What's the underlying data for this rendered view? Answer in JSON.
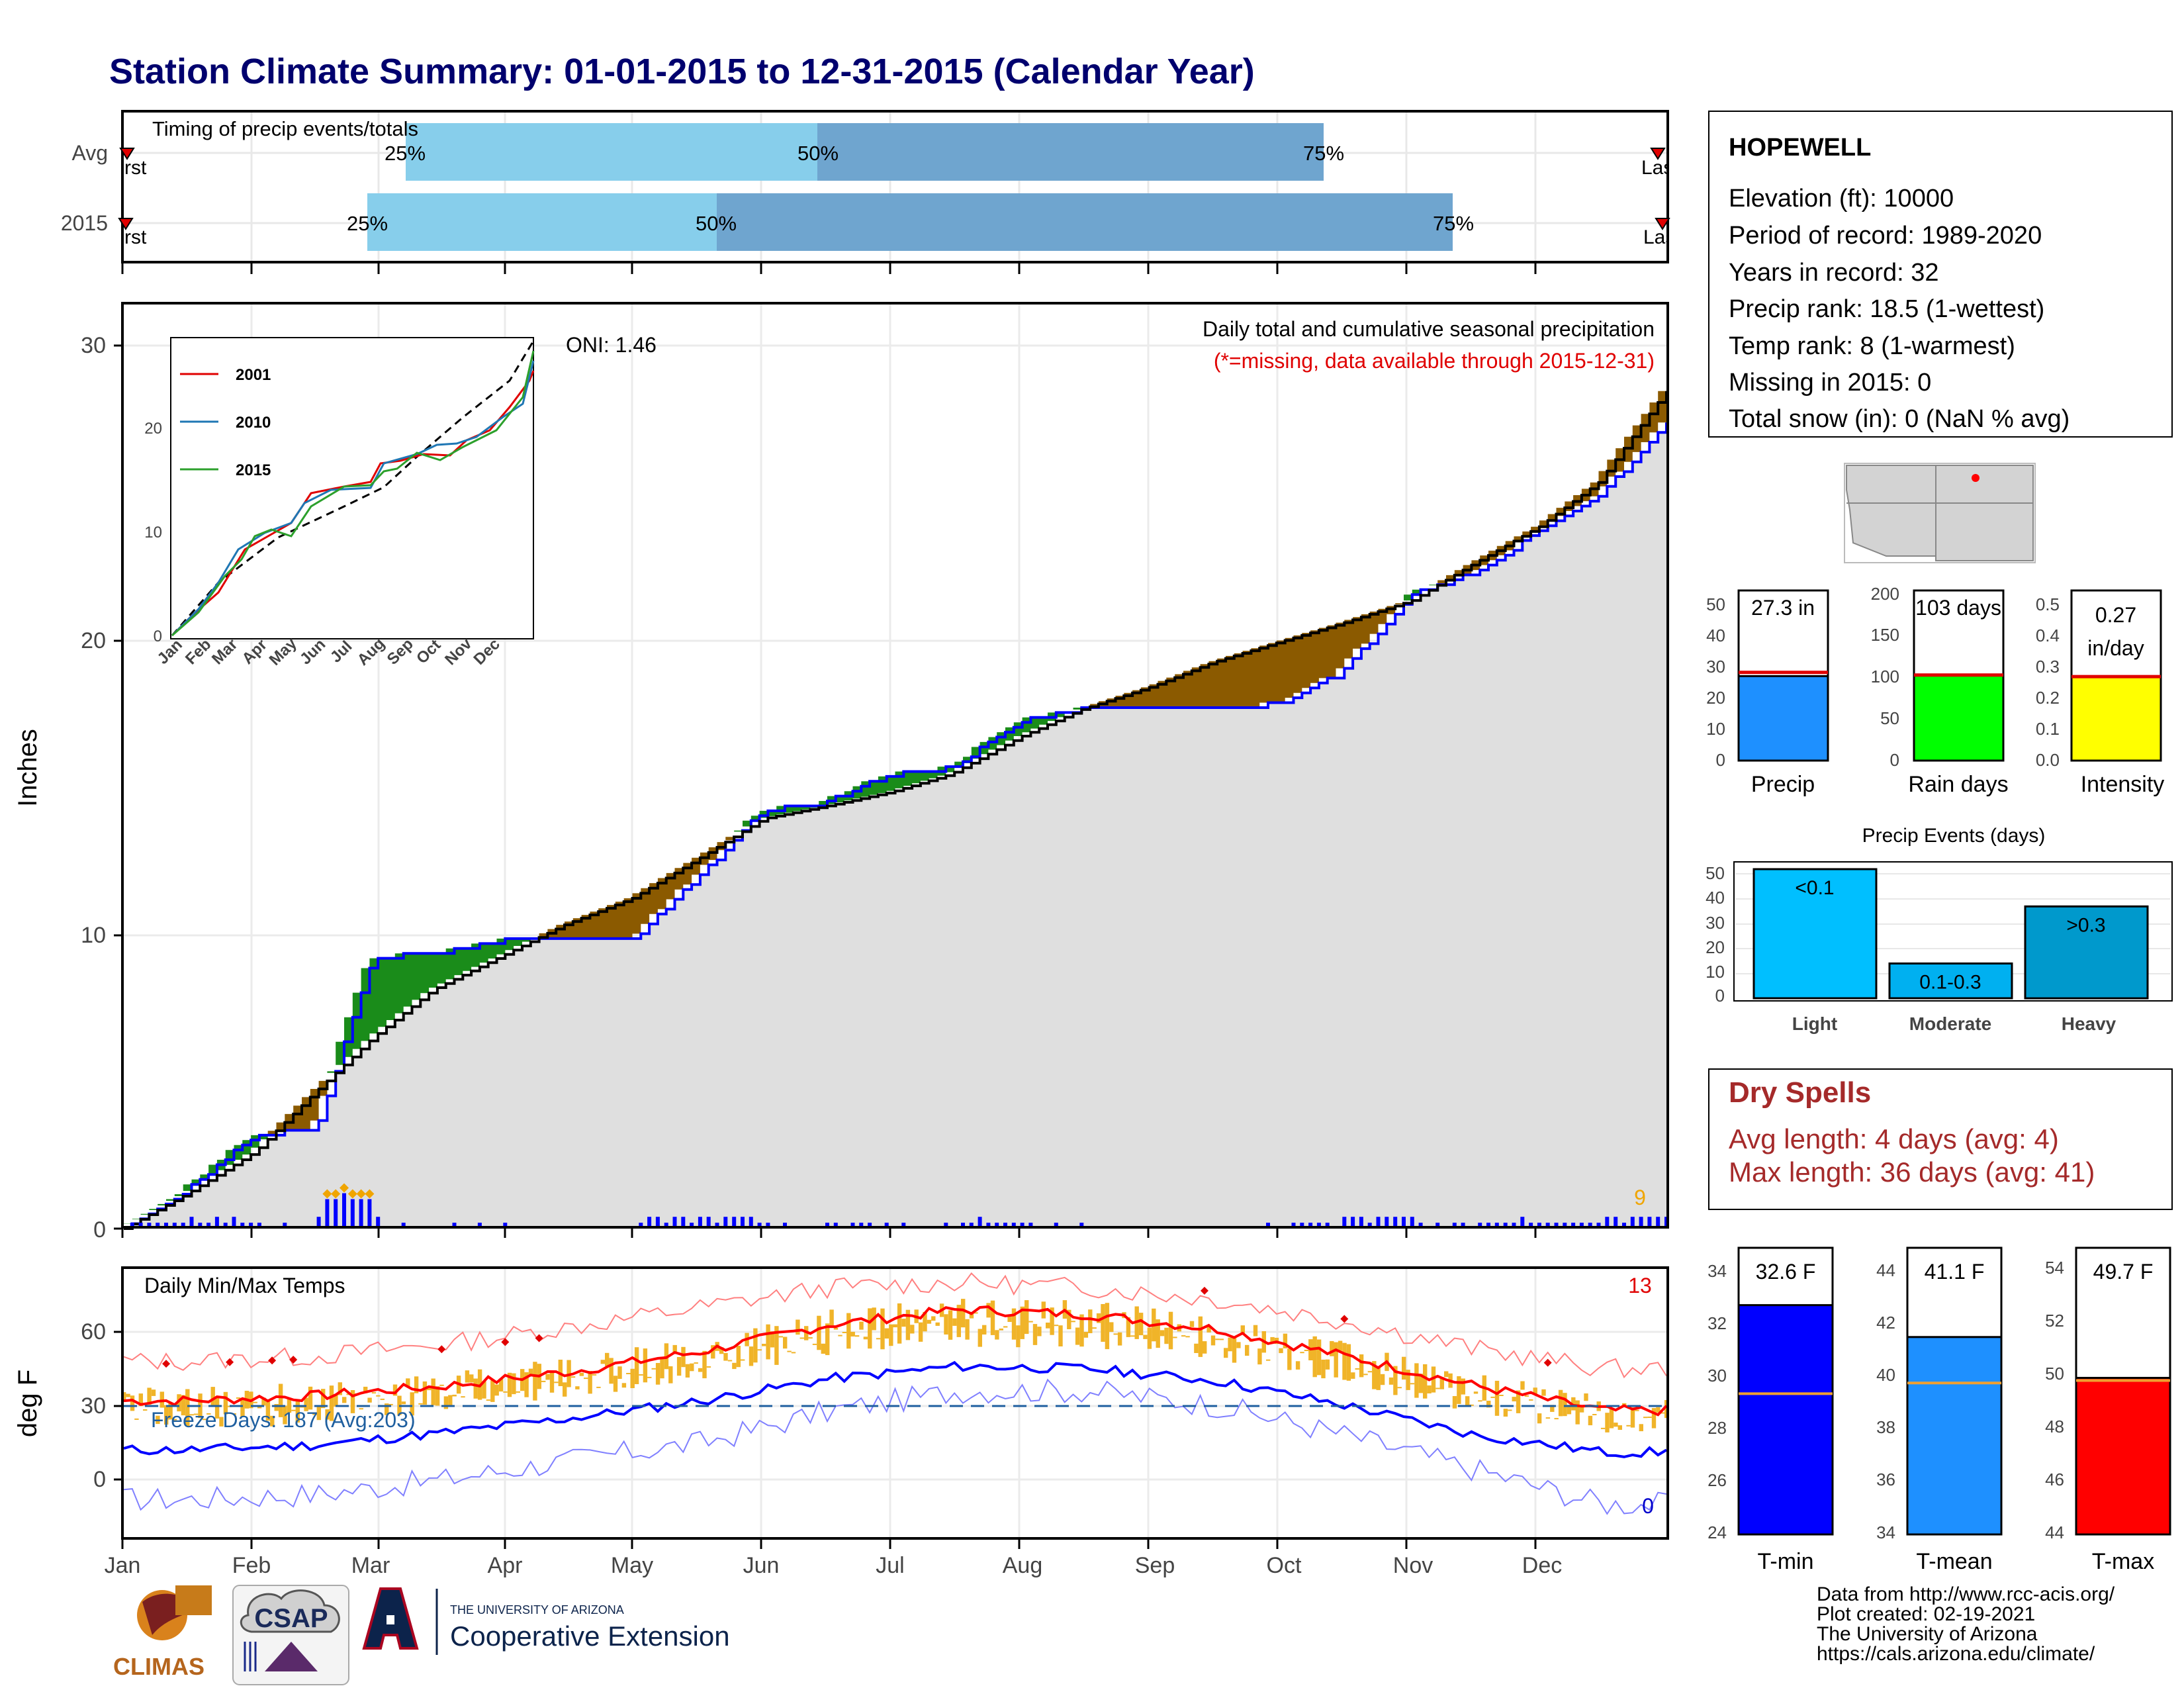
{
  "title": "Station Climate Summary: 01-01-2015 to 12-31-2015 (Calendar Year)",
  "colors": {
    "title": "#00006e",
    "light_blue": "#87ceeb",
    "mid_blue": "#6fa5cf",
    "brown": "#8b5a00",
    "green": "#1a8c1a",
    "blue": "#0000ff",
    "gray": "#dfdfdf",
    "orange": "#f0b429",
    "red": "#ff0000",
    "dry_spell": "#a52a2a"
  },
  "timing": {
    "title": "Timing of precip events/totals",
    "rows": [
      {
        "label": "Avg",
        "p25": "25%",
        "p50": "50%",
        "p75": "75%",
        "first": "First",
        "last": "Last"
      },
      {
        "label": "2015",
        "p25": "25%",
        "p50": "50%",
        "p75": "75%",
        "first": "First",
        "last": "Last"
      }
    ]
  },
  "station": {
    "name": "HOPEWELL",
    "lines": [
      "Elevation (ft): 10000",
      "Period of record: 1989-2020",
      "Years in record: 32",
      "Precip rank: 18.5 (1-wettest)",
      "Temp rank: 8 (1-warmest)",
      "Missing in 2015: 0",
      "Total snow (in): 0 (NaN % avg)"
    ]
  },
  "precip_panel": {
    "ylabel": "Inches",
    "yticks": [
      "0",
      "10",
      "20",
      "30"
    ],
    "caption": "Daily total and cumulative seasonal precipitation",
    "missing_note": "(*=missing, data available through 2015-12-31)",
    "oni": "ONI: 1.46",
    "extreme_count": "9"
  },
  "months": [
    "Jan",
    "Feb",
    "Mar",
    "Apr",
    "May",
    "Jun",
    "Jul",
    "Aug",
    "Sep",
    "Oct",
    "Nov",
    "Dec"
  ],
  "inset": {
    "legend": [
      "2001",
      "2010",
      "2015"
    ],
    "yticks": [
      "0",
      "10",
      "20"
    ],
    "months": [
      "Jan",
      "Feb",
      "Mar",
      "Apr",
      "May",
      "Jun",
      "Jul",
      "Aug",
      "Sep",
      "Oct",
      "Nov",
      "Dec"
    ]
  },
  "temp_panel": {
    "ylabel": "deg F",
    "title": "Daily Min/Max Temps",
    "yticks": [
      "0",
      "30",
      "60"
    ],
    "freeze": "Freeze Days: 187 (Avg:203)",
    "hot_count": "13",
    "cold_count": "0"
  },
  "summary_bars": [
    {
      "label": "Precip",
      "value_text": "27.3 in",
      "yticks": [
        "0",
        "10",
        "20",
        "30",
        "40",
        "50"
      ]
    },
    {
      "label": "Rain days",
      "value_text": "103 days",
      "yticks": [
        "0",
        "50",
        "100",
        "150",
        "200"
      ]
    },
    {
      "label": "Intensity",
      "value_text": "0.27",
      "value_text2": "in/day",
      "yticks": [
        "0.0",
        "0.1",
        "0.2",
        "0.3",
        "0.4",
        "0.5"
      ]
    }
  ],
  "events": {
    "title": "Precip Events (days)",
    "yticks": [
      "0",
      "10",
      "20",
      "30",
      "40",
      "50"
    ],
    "bars": [
      {
        "category": "Light",
        "label": "<0.1"
      },
      {
        "category": "Moderate",
        "label": "0.1-0.3"
      },
      {
        "category": "Heavy",
        "label": ">0.3"
      }
    ]
  },
  "dry_spells": {
    "title": "Dry Spells",
    "avg": "Avg length: 4 days (avg: 4)",
    "max": "Max length: 36 days (avg: 41)"
  },
  "temp_bars": [
    {
      "label": "T-min",
      "value_text": "32.6 F",
      "yticks": [
        "24",
        "26",
        "28",
        "30",
        "32",
        "34"
      ]
    },
    {
      "label": "T-mean",
      "value_text": "41.1 F",
      "yticks": [
        "34",
        "36",
        "38",
        "40",
        "42",
        "44"
      ]
    },
    {
      "label": "T-max",
      "value_text": "49.7 F",
      "yticks": [
        "44",
        "46",
        "48",
        "50",
        "52",
        "54"
      ]
    }
  ],
  "footer": {
    "lines": [
      "Data from http://www.rcc-acis.org/",
      "Plot created: 02-19-2021",
      "The University of Arizona",
      "https://cals.arizona.edu/climate/"
    ],
    "climas": "CLIMAS",
    "csap": "CSAP",
    "ua_small": "THE UNIVERSITY OF ARIZONA",
    "ua_big": "Cooperative Extension"
  },
  "chart_data": {
    "type": "area",
    "title": "Daily total and cumulative seasonal precipitation",
    "ylabel": "Inches",
    "ylim": [
      0,
      31
    ],
    "categories": [
      "Jan",
      "Feb",
      "Mar",
      "Apr",
      "May",
      "Jun",
      "Jul",
      "Aug",
      "Sep",
      "Oct",
      "Nov",
      "Dec"
    ],
    "x": [
      "2015-01-01",
      "2015-01-15",
      "2015-02-01",
      "2015-02-15",
      "2015-03-01",
      "2015-03-15",
      "2015-04-01",
      "2015-04-15",
      "2015-05-01",
      "2015-05-15",
      "2015-06-01",
      "2015-06-15",
      "2015-07-01",
      "2015-07-15",
      "2015-08-01",
      "2015-08-15",
      "2015-09-01",
      "2015-09-15",
      "2015-10-01",
      "2015-10-15",
      "2015-11-01",
      "2015-11-15",
      "2015-12-01",
      "2015-12-15",
      "2015-12-31"
    ],
    "series": [
      {
        "values": [
          0,
          1.2,
          3.2,
          3.3,
          9.2,
          9.3,
          9.8,
          9.8,
          9.8,
          11.7,
          14.2,
          14.4,
          15.4,
          15.6,
          17.2,
          17.6,
          17.6,
          17.6,
          17.8,
          18.8,
          21.5,
          22.2,
          23.6,
          24.8,
          27.3
        ]
      },
      {
        "values": [
          0,
          1.1,
          2.6,
          4.6,
          6.5,
          8.1,
          9.3,
          10.3,
          11.2,
          12.4,
          13.9,
          14.3,
          14.8,
          15.4,
          16.7,
          17.6,
          18.4,
          19.2,
          19.9,
          20.5,
          21.3,
          22.5,
          23.8,
          25.3,
          28.4
        ]
      }
    ],
    "temperature": {
      "ylabel": "deg F",
      "ylim": [
        -22,
        76
      ],
      "x": [
        "Jan",
        "Feb",
        "Mar",
        "Apr",
        "May",
        "Jun",
        "Jul",
        "Aug",
        "Sep",
        "Oct",
        "Nov",
        "Dec"
      ],
      "series": [
        {
          "values": [
            32,
            34,
            38,
            44,
            52,
            63,
            69,
            67,
            61,
            50,
            38,
            28
          ]
        },
        {
          "values": [
            12,
            14,
            19,
            25,
            32,
            41,
            46,
            45,
            40,
            30,
            18,
            11
          ]
        },
        {
          "values": [
            48,
            50,
            55,
            62,
            70,
            78,
            80,
            78,
            73,
            64,
            53,
            45
          ]
        },
        {
          "values": [
            -8,
            -6,
            0,
            8,
            15,
            28,
            36,
            36,
            30,
            18,
            4,
            -10
          ]
        }
      ]
    },
    "summary_bars": {
      "precip_in": {
        "value": 27.3,
        "avg": 28.5,
        "ylim": [
          0,
          55
        ]
      },
      "rain_days": {
        "value": 103,
        "avg": 103,
        "ylim": [
          0,
          200
        ]
      },
      "intensity_in_per_day": {
        "value": 0.27,
        "avg": 0.27,
        "ylim": [
          0,
          0.5
        ]
      }
    },
    "events_days": {
      "categories": [
        "Light",
        "Moderate",
        "Heavy"
      ],
      "values": [
        52,
        14,
        37
      ],
      "ylim": [
        0,
        52
      ]
    },
    "temp_bars": {
      "tmin": {
        "value": 32.6,
        "avg": 29.2,
        "ylim": [
          23.8,
          34.8
        ]
      },
      "tmean": {
        "value": 41.1,
        "avg": 39.4,
        "ylim": [
          33.8,
          44.4
        ]
      },
      "tmax": {
        "value": 49.7,
        "avg": 49.6,
        "ylim": [
          43.8,
          54.6
        ]
      }
    }
  }
}
